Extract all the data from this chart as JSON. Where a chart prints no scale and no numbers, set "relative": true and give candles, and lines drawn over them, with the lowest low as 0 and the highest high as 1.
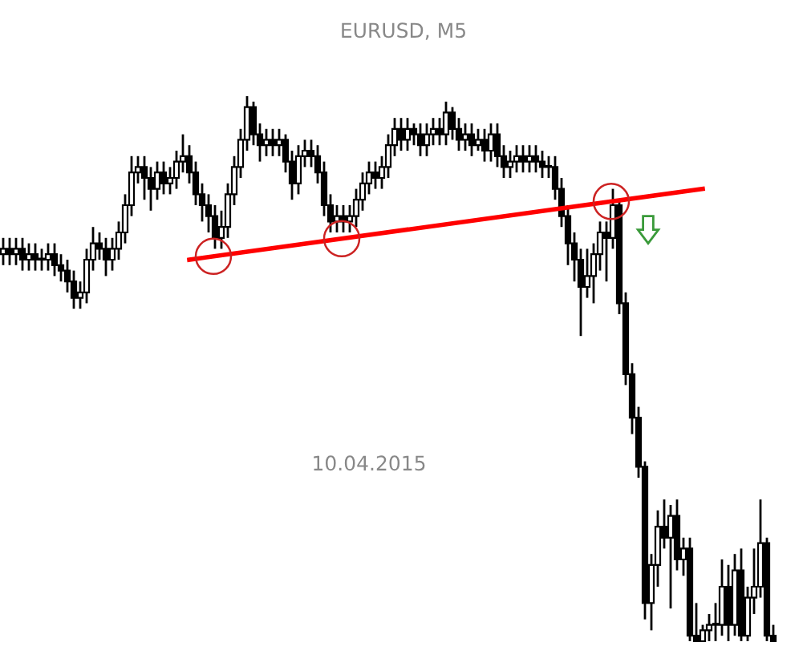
{
  "chart_data": {
    "type": "candlestick",
    "title": "EURUSD, M5",
    "relative": true,
    "annotations": [
      "10.04.2015"
    ],
    "categories": [
      null,
      null,
      null,
      null,
      null,
      null,
      null,
      null,
      null,
      null,
      null,
      null,
      null,
      null,
      null,
      null,
      null,
      null,
      null,
      null,
      null,
      null,
      null,
      null,
      null,
      null,
      null,
      null,
      null,
      null,
      null,
      null,
      null,
      null,
      null,
      null,
      null,
      null,
      null,
      null,
      null,
      null,
      null,
      null,
      null,
      null,
      null,
      null,
      null,
      null,
      null,
      null,
      null,
      null,
      null,
      null,
      null,
      null,
      null,
      null,
      null,
      null,
      null,
      null,
      null,
      null,
      null,
      null,
      null,
      null,
      null,
      null,
      null,
      null,
      null,
      null,
      null,
      null,
      null,
      null,
      null,
      null,
      null,
      null,
      null,
      null,
      null,
      null,
      null,
      null,
      null,
      null,
      null,
      null,
      null,
      null,
      null,
      null,
      null,
      null,
      null,
      null,
      null,
      null,
      null,
      null,
      null,
      null,
      null,
      null,
      null,
      null,
      null,
      null,
      null,
      null,
      null,
      null,
      null,
      null,
      null
    ],
    "ohlc": [
      [
        0.71,
        0.74,
        0.69,
        0.72
      ],
      [
        0.72,
        0.74,
        0.69,
        0.71
      ],
      [
        0.71,
        0.74,
        0.69,
        0.72
      ],
      [
        0.72,
        0.74,
        0.68,
        0.7
      ],
      [
        0.7,
        0.73,
        0.68,
        0.71
      ],
      [
        0.71,
        0.73,
        0.68,
        0.7
      ],
      [
        0.7,
        0.72,
        0.68,
        0.7
      ],
      [
        0.7,
        0.73,
        0.68,
        0.71
      ],
      [
        0.71,
        0.73,
        0.67,
        0.69
      ],
      [
        0.69,
        0.71,
        0.66,
        0.68
      ],
      [
        0.68,
        0.7,
        0.64,
        0.66
      ],
      [
        0.66,
        0.68,
        0.61,
        0.63
      ],
      [
        0.63,
        0.66,
        0.61,
        0.64
      ],
      [
        0.64,
        0.72,
        0.62,
        0.7
      ],
      [
        0.7,
        0.76,
        0.68,
        0.73
      ],
      [
        0.73,
        0.75,
        0.7,
        0.72
      ],
      [
        0.72,
        0.74,
        0.67,
        0.7
      ],
      [
        0.7,
        0.74,
        0.68,
        0.72
      ],
      [
        0.72,
        0.77,
        0.7,
        0.75
      ],
      [
        0.75,
        0.82,
        0.73,
        0.8
      ],
      [
        0.8,
        0.89,
        0.78,
        0.86
      ],
      [
        0.86,
        0.89,
        0.84,
        0.87
      ],
      [
        0.87,
        0.89,
        0.81,
        0.85
      ],
      [
        0.85,
        0.87,
        0.79,
        0.83
      ],
      [
        0.83,
        0.88,
        0.81,
        0.86
      ],
      [
        0.86,
        0.88,
        0.82,
        0.84
      ],
      [
        0.84,
        0.87,
        0.82,
        0.85
      ],
      [
        0.85,
        0.9,
        0.83,
        0.88
      ],
      [
        0.88,
        0.93,
        0.86,
        0.89
      ],
      [
        0.89,
        0.91,
        0.84,
        0.86
      ],
      [
        0.86,
        0.88,
        0.8,
        0.82
      ],
      [
        0.82,
        0.84,
        0.77,
        0.8
      ],
      [
        0.8,
        0.82,
        0.75,
        0.78
      ],
      [
        0.78,
        0.8,
        0.72,
        0.74
      ],
      [
        0.74,
        0.79,
        0.72,
        0.76
      ],
      [
        0.76,
        0.84,
        0.74,
        0.82
      ],
      [
        0.82,
        0.89,
        0.8,
        0.87
      ],
      [
        0.87,
        0.94,
        0.85,
        0.92
      ],
      [
        0.92,
        1.0,
        0.9,
        0.98
      ],
      [
        0.98,
        0.99,
        0.91,
        0.93
      ],
      [
        0.93,
        0.95,
        0.88,
        0.91
      ],
      [
        0.91,
        0.94,
        0.89,
        0.92
      ],
      [
        0.92,
        0.94,
        0.89,
        0.91
      ],
      [
        0.91,
        0.94,
        0.89,
        0.92
      ],
      [
        0.92,
        0.93,
        0.86,
        0.88
      ],
      [
        0.88,
        0.9,
        0.81,
        0.84
      ],
      [
        0.84,
        0.91,
        0.82,
        0.89
      ],
      [
        0.89,
        0.92,
        0.87,
        0.9
      ],
      [
        0.9,
        0.92,
        0.87,
        0.89
      ],
      [
        0.89,
        0.91,
        0.84,
        0.86
      ],
      [
        0.86,
        0.88,
        0.78,
        0.8
      ],
      [
        0.8,
        0.82,
        0.75,
        0.77
      ],
      [
        0.77,
        0.8,
        0.75,
        0.78
      ],
      [
        0.78,
        0.8,
        0.75,
        0.77
      ],
      [
        0.77,
        0.8,
        0.75,
        0.78
      ],
      [
        0.78,
        0.83,
        0.76,
        0.81
      ],
      [
        0.81,
        0.86,
        0.79,
        0.84
      ],
      [
        0.84,
        0.88,
        0.82,
        0.86
      ],
      [
        0.86,
        0.88,
        0.83,
        0.85
      ],
      [
        0.85,
        0.89,
        0.83,
        0.87
      ],
      [
        0.87,
        0.93,
        0.85,
        0.91
      ],
      [
        0.91,
        0.96,
        0.89,
        0.94
      ],
      [
        0.94,
        0.96,
        0.9,
        0.92
      ],
      [
        0.92,
        0.96,
        0.9,
        0.94
      ],
      [
        0.94,
        0.95,
        0.91,
        0.93
      ],
      [
        0.93,
        0.95,
        0.89,
        0.91
      ],
      [
        0.91,
        0.95,
        0.89,
        0.93
      ],
      [
        0.93,
        0.96,
        0.91,
        0.94
      ],
      [
        0.94,
        0.96,
        0.91,
        0.93
      ],
      [
        0.93,
        0.99,
        0.91,
        0.97
      ],
      [
        0.97,
        0.98,
        0.92,
        0.94
      ],
      [
        0.94,
        0.96,
        0.9,
        0.92
      ],
      [
        0.92,
        0.95,
        0.9,
        0.93
      ],
      [
        0.93,
        0.95,
        0.89,
        0.91
      ],
      [
        0.91,
        0.94,
        0.9,
        0.92
      ],
      [
        0.92,
        0.94,
        0.88,
        0.9
      ],
      [
        0.9,
        0.95,
        0.88,
        0.93
      ],
      [
        0.93,
        0.95,
        0.87,
        0.89
      ],
      [
        0.89,
        0.91,
        0.85,
        0.87
      ],
      [
        0.87,
        0.9,
        0.85,
        0.88
      ],
      [
        0.88,
        0.91,
        0.86,
        0.89
      ],
      [
        0.89,
        0.91,
        0.86,
        0.88
      ],
      [
        0.88,
        0.91,
        0.86,
        0.89
      ],
      [
        0.89,
        0.91,
        0.86,
        0.88
      ],
      [
        0.88,
        0.9,
        0.85,
        0.87
      ],
      [
        0.87,
        0.89,
        0.85,
        0.87
      ],
      [
        0.87,
        0.89,
        0.81,
        0.83
      ],
      [
        0.83,
        0.85,
        0.76,
        0.78
      ],
      [
        0.78,
        0.8,
        0.69,
        0.73
      ],
      [
        0.73,
        0.75,
        0.66,
        0.7
      ],
      [
        0.7,
        0.72,
        0.56,
        0.65
      ],
      [
        0.65,
        0.72,
        0.63,
        0.67
      ],
      [
        0.67,
        0.73,
        0.62,
        0.71
      ],
      [
        0.71,
        0.77,
        0.68,
        0.75
      ],
      [
        0.75,
        0.77,
        0.66,
        0.74
      ],
      [
        0.74,
        0.83,
        0.72,
        0.8
      ],
      [
        0.8,
        0.81,
        0.6,
        0.62
      ],
      [
        0.62,
        0.64,
        0.47,
        0.49
      ],
      [
        0.49,
        0.51,
        0.38,
        0.41
      ],
      [
        0.41,
        0.43,
        0.3,
        0.32
      ],
      [
        0.32,
        0.33,
        0.04,
        0.07
      ],
      [
        0.07,
        0.16,
        0.02,
        0.14
      ],
      [
        0.14,
        0.24,
        0.1,
        0.21
      ],
      [
        0.21,
        0.26,
        0.17,
        0.19
      ],
      [
        0.19,
        0.25,
        0.06,
        0.23
      ],
      [
        0.23,
        0.26,
        0.13,
        0.15
      ],
      [
        0.15,
        0.19,
        0.12,
        0.17
      ],
      [
        0.17,
        0.19,
        0.0,
        0.01
      ],
      [
        0.01,
        0.07,
        0.0,
        0.0
      ],
      [
        0.0,
        0.03,
        0.0,
        0.02
      ],
      [
        0.02,
        0.05,
        0.0,
        0.03
      ],
      [
        0.03,
        0.07,
        0.0,
        0.03
      ],
      [
        0.03,
        0.15,
        0.01,
        0.1
      ],
      [
        0.1,
        0.14,
        0.0,
        0.03
      ],
      [
        0.03,
        0.16,
        0.01,
        0.13
      ],
      [
        0.13,
        0.17,
        0.0,
        0.01
      ],
      [
        0.01,
        0.1,
        0.0,
        0.08
      ],
      [
        0.08,
        0.17,
        0.05,
        0.1
      ],
      [
        0.1,
        0.26,
        0.08,
        0.18
      ],
      [
        0.18,
        0.19,
        0.0,
        0.01
      ],
      [
        0.01,
        0.03,
        0.0,
        0.0
      ]
    ],
    "series": [
      {
        "type": "line",
        "color": "#ff0000",
        "values": [
          null,
          null,
          null,
          null,
          null,
          null,
          null,
          null,
          null,
          null,
          null,
          null,
          null,
          null,
          null,
          null,
          null,
          null,
          null,
          null,
          null,
          null,
          null,
          null,
          null,
          null,
          null,
          null,
          null,
          0.7,
          null,
          null,
          null,
          null,
          null,
          null,
          null,
          null,
          null,
          null,
          null,
          null,
          null,
          null,
          null,
          null,
          null,
          null,
          null,
          null,
          null,
          null,
          null,
          null,
          null,
          null,
          null,
          null,
          null,
          null,
          null,
          null,
          null,
          null,
          null,
          null,
          null,
          null,
          null,
          null,
          null,
          null,
          null,
          null,
          null,
          null,
          null,
          null,
          null,
          null,
          null,
          null,
          null,
          null,
          null,
          null,
          null,
          null,
          null,
          null,
          null,
          null,
          null,
          null,
          null,
          null,
          null,
          null,
          null,
          null,
          null,
          null,
          null,
          null,
          null,
          null,
          null,
          null,
          null,
          0.83,
          null,
          null,
          null,
          null,
          null,
          null,
          null,
          null,
          null,
          null,
          null
        ]
      }
    ]
  }
}
